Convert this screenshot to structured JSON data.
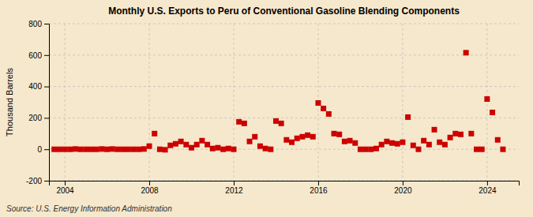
{
  "chart_data": {
    "type": "scatter",
    "title": "Monthly U.S. Exports to Peru of Conventional Gasoline Blending Components",
    "ylabel": "Thousand Barrels",
    "source": "Source: U.S. Energy Information Administration",
    "x": [
      2003.5,
      2003.75,
      2004.0,
      2004.25,
      2004.5,
      2004.75,
      2005.0,
      2005.25,
      2005.5,
      2005.75,
      2006.0,
      2006.25,
      2006.5,
      2006.75,
      2007.0,
      2007.25,
      2007.5,
      2007.75,
      2008.0,
      2008.25,
      2008.5,
      2008.75,
      2009.0,
      2009.25,
      2009.5,
      2009.75,
      2010.0,
      2010.25,
      2010.5,
      2010.75,
      2011.0,
      2011.25,
      2011.5,
      2011.75,
      2012.0,
      2012.25,
      2012.5,
      2012.75,
      2013.0,
      2013.25,
      2013.5,
      2013.75,
      2014.0,
      2014.25,
      2014.5,
      2014.75,
      2015.0,
      2015.25,
      2015.5,
      2015.75,
      2016.0,
      2016.25,
      2016.5,
      2016.75,
      2017.0,
      2017.25,
      2017.5,
      2017.75,
      2018.0,
      2018.25,
      2018.5,
      2018.75,
      2019.0,
      2019.25,
      2019.5,
      2019.75,
      2020.0,
      2020.25,
      2020.5,
      2020.75,
      2021.0,
      2021.25,
      2021.5,
      2021.75,
      2022.0,
      2022.25,
      2022.5,
      2022.75,
      2023.0,
      2023.25,
      2023.5,
      2023.75,
      2024.0,
      2024.25,
      2024.5,
      2024.75
    ],
    "values": [
      0,
      0,
      0,
      0,
      2,
      0,
      0,
      0,
      0,
      2,
      0,
      2,
      0,
      0,
      0,
      0,
      0,
      2,
      20,
      100,
      0,
      -3,
      25,
      35,
      50,
      30,
      10,
      30,
      55,
      30,
      5,
      10,
      0,
      5,
      0,
      175,
      165,
      50,
      80,
      20,
      5,
      0,
      180,
      165,
      60,
      45,
      70,
      80,
      90,
      80,
      295,
      260,
      225,
      100,
      95,
      50,
      55,
      40,
      0,
      0,
      0,
      5,
      30,
      50,
      40,
      35,
      45,
      205,
      25,
      0,
      55,
      30,
      125,
      45,
      30,
      75,
      100,
      95,
      615,
      100,
      0,
      0,
      320,
      235,
      60,
      0
    ],
    "color": "#cc0000",
    "marker": "square",
    "xlim": [
      2003.25,
      2025.5
    ],
    "xticks": [
      2004,
      2008,
      2012,
      2016,
      2020,
      2024
    ],
    "ylim": [
      -200,
      800
    ],
    "yticks": [
      -200,
      0,
      200,
      400,
      600,
      800
    ],
    "grid": true
  }
}
